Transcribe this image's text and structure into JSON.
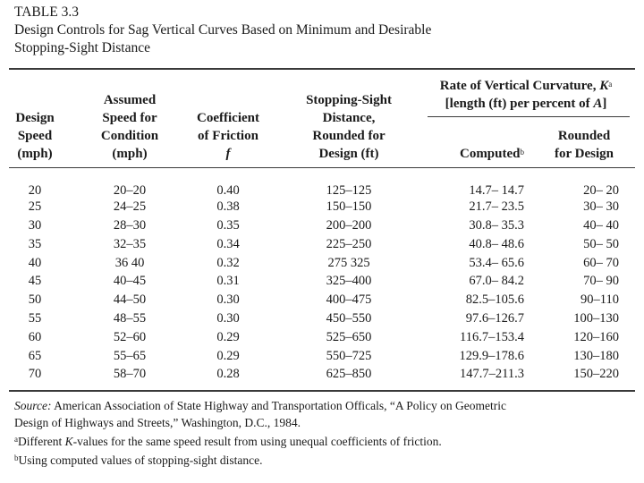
{
  "caption": {
    "table_number": "TABLE 3.3",
    "title_line1": "Design Controls for Sag Vertical Curves Based on Minimum and Desirable",
    "title_line2": "Stopping-Sight Distance"
  },
  "headers": {
    "design_speed": [
      "Design",
      "Speed",
      "(mph)"
    ],
    "assumed_speed": [
      "Assumed",
      "Speed for",
      "Condition",
      "(mph)"
    ],
    "coefficient": [
      "Coefficient",
      "of Friction"
    ],
    "coefficient_symbol": "f",
    "ssd": [
      "Stopping-Sight",
      "Distance,",
      "Rounded for",
      "Design (ft)"
    ],
    "rate_prefix": "Rate of Vertical Curvature, ",
    "rate_K": "K",
    "rate_sup": "a",
    "rate_line2_prefix": "[length (ft) per percent of ",
    "rate_A": "A",
    "rate_line2_suffix": "]",
    "computed": "Computed",
    "computed_sup": "b",
    "rounded": [
      "Rounded",
      "for Design"
    ]
  },
  "rows": [
    {
      "speed": "20",
      "assumed": "20–20",
      "friction": "0.40",
      "ssd": "125–125",
      "computed": "14.7– 14.7",
      "rounded": "20– 20"
    },
    {
      "speed": "25",
      "assumed": "24–25",
      "friction": "0.38",
      "ssd": "150–150",
      "computed": "21.7– 23.5",
      "rounded": "30– 30"
    },
    {
      "speed": "30",
      "assumed": "28–30",
      "friction": "0.35",
      "ssd": "200–200",
      "computed": "30.8– 35.3",
      "rounded": "40– 40"
    },
    {
      "speed": "35",
      "assumed": "32–35",
      "friction": "0.34",
      "ssd": "225–250",
      "computed": "40.8– 48.6",
      "rounded": "50– 50"
    },
    {
      "speed": "40",
      "assumed": "36 40",
      "friction": "0.32",
      "ssd": "275 325",
      "computed": "53.4– 65.6",
      "rounded": "60– 70"
    },
    {
      "speed": "45",
      "assumed": "40–45",
      "friction": "0.31",
      "ssd": "325–400",
      "computed": "67.0– 84.2",
      "rounded": "70– 90"
    },
    {
      "speed": "50",
      "assumed": "44–50",
      "friction": "0.30",
      "ssd": "400–475",
      "computed": "82.5–105.6",
      "rounded": "90–110"
    },
    {
      "speed": "55",
      "assumed": "48–55",
      "friction": "0.30",
      "ssd": "450–550",
      "computed": "97.6–126.7",
      "rounded": "100–130"
    },
    {
      "speed": "60",
      "assumed": "52–60",
      "friction": "0.29",
      "ssd": "525–650",
      "computed": "116.7–153.4",
      "rounded": "120–160"
    },
    {
      "speed": "65",
      "assumed": "55–65",
      "friction": "0.29",
      "ssd": "550–725",
      "computed": "129.9–178.6",
      "rounded": "130–180"
    },
    {
      "speed": "70",
      "assumed": "58–70",
      "friction": "0.28",
      "ssd": "625–850",
      "computed": "147.7–211.3",
      "rounded": "150–220"
    }
  ],
  "notes": {
    "source_label": "Source:",
    "source_line1": " American Association of State Highway and Transportation Officals, “A Policy on Geometric",
    "source_line2": "Design of Highways and Streets,” Washington, D.C., 1984.",
    "a_mark": "a",
    "a_prefix": "Different ",
    "a_K": "K",
    "a_suffix": "-values for the same speed result from using unequal coefficients of friction.",
    "b_mark": "b",
    "b_text": "Using computed values of stopping-sight distance."
  }
}
